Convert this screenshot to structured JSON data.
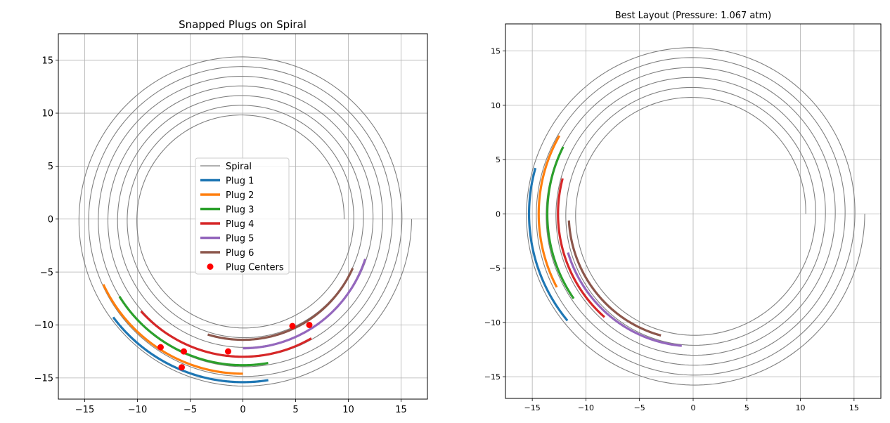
{
  "chart_data": [
    {
      "type": "line",
      "title": "Snapped Plugs on Spiral",
      "xlim": [
        -17.5,
        17.5
      ],
      "ylim": [
        -17,
        17.5
      ],
      "xticks": [
        -15,
        -10,
        -5,
        0,
        5,
        10,
        15
      ],
      "yticks": [
        -15,
        -10,
        -5,
        0,
        5,
        10,
        15
      ],
      "xtick_labels": [
        "−15",
        "−10",
        "−5",
        "0",
        "5",
        "10",
        "15"
      ],
      "ytick_labels": [
        "−15",
        "−10",
        "−5",
        "0",
        "5",
        "10",
        "15"
      ],
      "grid": true,
      "legend_position": "center",
      "spiral": {
        "name": "Spiral",
        "color": "#808080",
        "r_start": 9.6,
        "r_end": 16.0,
        "turns": 7
      },
      "series": [
        {
          "name": "Plug 1",
          "color": "#1f77b4",
          "radius": 15.4,
          "angle_start_deg": 217.0,
          "angle_end_deg": 279.0
        },
        {
          "name": "Plug 2",
          "color": "#ff7f0e",
          "radius": 14.6,
          "angle_start_deg": 205.0,
          "angle_end_deg": 270.0
        },
        {
          "name": "Plug 3",
          "color": "#2ca02c",
          "radius": 13.8,
          "angle_start_deg": 212.0,
          "angle_end_deg": 280.0
        },
        {
          "name": "Plug 4",
          "color": "#d62728",
          "radius": 13.0,
          "angle_start_deg": 222.0,
          "angle_end_deg": 300.0
        },
        {
          "name": "Plug 5",
          "color": "#9467bd",
          "radius": 12.2,
          "angle_start_deg": 270.0,
          "angle_end_deg": 342.0
        },
        {
          "name": "Plug 6",
          "color": "#8c564b",
          "radius": 11.4,
          "angle_start_deg": 253.0,
          "angle_end_deg": 336.0
        }
      ],
      "centers": {
        "name": "Plug Centers",
        "color": "#ff0000",
        "points": [
          [
            -7.8,
            -12.1
          ],
          [
            -5.6,
            -12.5
          ],
          [
            -5.8,
            -14.0
          ],
          [
            -1.4,
            -12.5
          ],
          [
            4.7,
            -10.1
          ],
          [
            6.3,
            -10.0
          ]
        ]
      }
    },
    {
      "type": "line",
      "title": "Best Layout (Pressure: 1.067 atm)",
      "xlim": [
        -17.5,
        17.5
      ],
      "ylim": [
        -17,
        17.5
      ],
      "xticks": [
        -15,
        -10,
        -5,
        0,
        5,
        10,
        15
      ],
      "yticks": [
        -15,
        -10,
        -5,
        0,
        5,
        10,
        15
      ],
      "xtick_labels": [
        "−15",
        "−10",
        "−5",
        "0",
        "5",
        "10",
        "15"
      ],
      "ytick_labels": [
        "−15",
        "−10",
        "−5",
        "0",
        "5",
        "10",
        "15"
      ],
      "grid": true,
      "spiral": {
        "color": "#808080",
        "r_start": 10.5,
        "r_end": 16.0,
        "turns": 6
      },
      "series": [
        {
          "color": "#1f77b4",
          "radius": 15.3,
          "angle_start_deg": 164.0,
          "angle_end_deg": 220.0
        },
        {
          "color": "#ff7f0e",
          "radius": 14.4,
          "angle_start_deg": 150.0,
          "angle_end_deg": 208.0
        },
        {
          "color": "#2ca02c",
          "radius": 13.6,
          "angle_start_deg": 153.0,
          "angle_end_deg": 215.0
        },
        {
          "color": "#d62728",
          "radius": 12.6,
          "angle_start_deg": 165.0,
          "angle_end_deg": 229.0
        },
        {
          "color": "#9467bd",
          "radius": 12.2,
          "angle_start_deg": 197.0,
          "angle_end_deg": 265.0
        },
        {
          "color": "#8c564b",
          "radius": 11.6,
          "angle_start_deg": 183.0,
          "angle_end_deg": 255.0
        }
      ]
    }
  ]
}
